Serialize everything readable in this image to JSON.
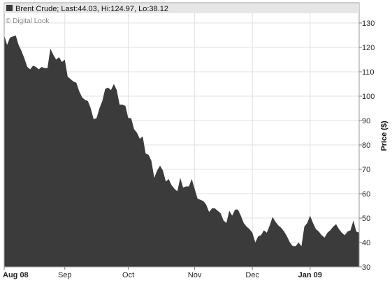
{
  "chart_data": {
    "type": "area",
    "title": "",
    "legend_label": "Brent Crude; Last:44.03, Hi:124.97, Lo:38.12",
    "credit": "© Digital Look",
    "xlabel": "",
    "ylabel": "Price ($)",
    "ylim": [
      30,
      134
    ],
    "y_ticks": [
      30,
      40,
      50,
      60,
      70,
      80,
      90,
      100,
      110,
      120,
      130
    ],
    "x_ticks": [
      {
        "label": "Aug 08",
        "index": 0
      },
      {
        "label": "Sep",
        "index": 21
      },
      {
        "label": "Oct",
        "index": 43
      },
      {
        "label": "Nov",
        "index": 66
      },
      {
        "label": "Dec",
        "index": 86
      },
      {
        "label": "Jan 09",
        "index": 106
      }
    ],
    "grid": true,
    "legend_position": "top-left",
    "colors": {
      "area": "#3b3b3b",
      "grid": "#e2e2e2",
      "frame": "#9a9a9a",
      "legend_bg": "#e6e6e6"
    },
    "series": [
      {
        "name": "Brent Crude",
        "values": [
          125.0,
          121.0,
          124.0,
          124.5,
          124.9,
          121.0,
          118.5,
          115.5,
          112.0,
          111.0,
          112.5,
          112.0,
          111.0,
          112.0,
          111.5,
          111.5,
          119.5,
          117.0,
          115.0,
          116.0,
          114.0,
          115.0,
          108.0,
          107.0,
          106.0,
          105.5,
          102.0,
          99.5,
          98.5,
          98.0,
          95.0,
          90.5,
          91.0,
          95.0,
          98.0,
          103.0,
          103.5,
          102.5,
          105.0,
          102.5,
          96.5,
          96.5,
          96.0,
          91.0,
          91.0,
          86.5,
          85.0,
          82.5,
          83.5,
          76.5,
          76.0,
          73.5,
          66.5,
          69.5,
          71.5,
          69.5,
          65.0,
          66.0,
          63.5,
          62.0,
          61.0,
          66.5,
          62.5,
          63.0,
          63.0,
          66.0,
          62.0,
          58.0,
          57.5,
          57.0,
          55.5,
          52.5,
          54.0,
          54.0,
          53.0,
          52.0,
          49.0,
          48.0,
          53.0,
          51.0,
          53.5,
          53.5,
          51.0,
          48.0,
          46.5,
          45.5,
          44.0,
          40.0,
          42.5,
          43.0,
          45.0,
          44.0,
          47.0,
          50.5,
          48.5,
          47.0,
          46.0,
          44.5,
          42.5,
          40.0,
          38.5,
          38.5,
          40.0,
          38.5,
          46.5,
          48.0,
          51.0,
          48.0,
          45.5,
          44.5,
          43.0,
          42.0,
          44.0,
          45.0,
          46.5,
          47.5,
          45.5,
          44.0,
          43.0,
          44.5,
          45.0,
          49.0,
          44.5,
          44.03
        ]
      }
    ]
  }
}
